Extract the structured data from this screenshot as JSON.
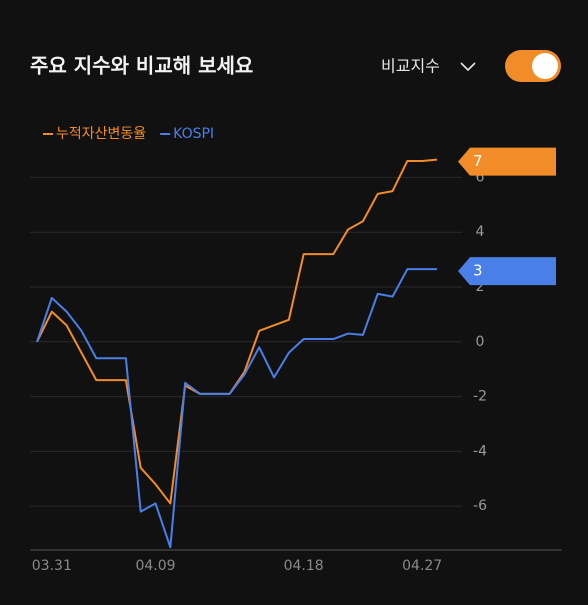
{
  "header": {
    "title": "주요 지수와 비교해 보세요",
    "compare_label": "비교지수"
  },
  "chart_data": {
    "type": "line",
    "categories": [
      null,
      "03.31",
      null,
      null,
      null,
      null,
      null,
      null,
      "04.09",
      null,
      null,
      null,
      null,
      null,
      null,
      null,
      null,
      null,
      "04.18",
      null,
      null,
      null,
      null,
      null,
      null,
      null,
      "04.27",
      null
    ],
    "series": [
      {
        "name": "누적자산변동율",
        "color": "#f28c28",
        "values": [
          0,
          1.1,
          0.6,
          -0.4,
          -1.4,
          -1.4,
          -1.4,
          -4.6,
          -5.2,
          -5.9,
          -1.6,
          -1.9,
          -1.9,
          -1.9,
          -1.1,
          0.4,
          0.6,
          0.8,
          3.2,
          3.2,
          3.2,
          4.1,
          4.4,
          5.4,
          5.5,
          6.6,
          6.6,
          6.65
        ],
        "value_labels": [
          null,
          null,
          null,
          null,
          null,
          null,
          null,
          null,
          null,
          null,
          null,
          null,
          null,
          null,
          null,
          null,
          null,
          null,
          null,
          null,
          null,
          null,
          null,
          null,
          null,
          null,
          null,
          "7"
        ]
      },
      {
        "name": "KOSPI",
        "color": "#4a7fe8",
        "values": [
          0,
          1.6,
          1.1,
          0.4,
          -0.6,
          -0.6,
          -0.6,
          -6.2,
          -5.9,
          -7.5,
          -1.5,
          -1.9,
          -1.9,
          -1.9,
          -1.2,
          -0.2,
          -1.3,
          -0.4,
          0.1,
          0.1,
          0.1,
          0.3,
          0.25,
          1.75,
          1.65,
          2.65,
          2.65,
          2.65
        ],
        "value_labels": [
          null,
          null,
          null,
          null,
          null,
          null,
          null,
          null,
          null,
          null,
          null,
          null,
          null,
          null,
          null,
          null,
          null,
          null,
          null,
          null,
          null,
          null,
          null,
          null,
          null,
          null,
          null,
          "3"
        ]
      }
    ],
    "ylim": [
      -7.6,
      7.0
    ],
    "yticks": [
      -6,
      -4,
      -2,
      0,
      2,
      4,
      6
    ],
    "grid": true
  }
}
